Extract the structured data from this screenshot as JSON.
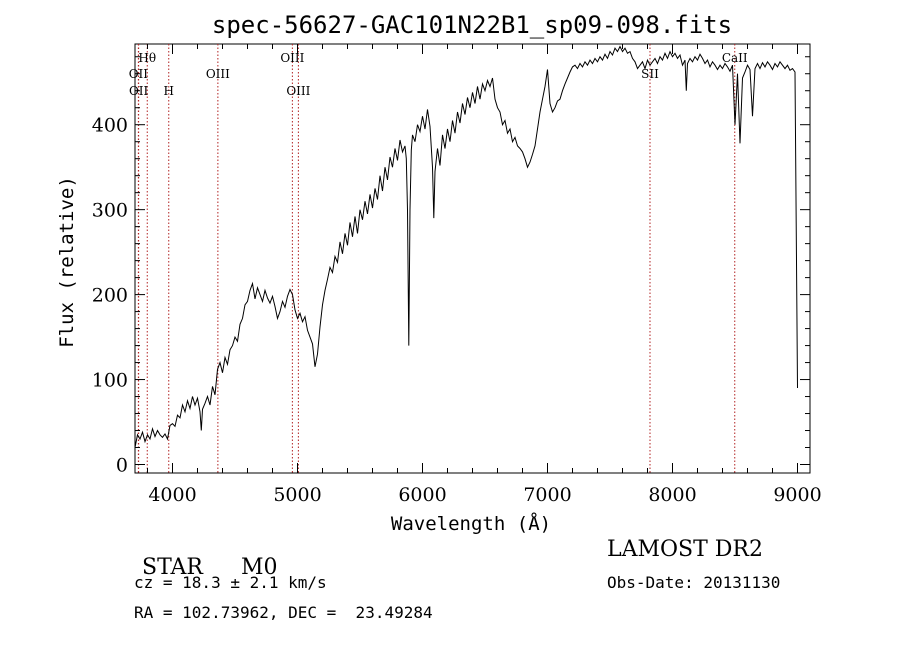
{
  "chart_data": {
    "type": "line",
    "title": "spec-56627-GAC101N22B1_sp09-098.fits",
    "xlabel": "Wavelength (Å)",
    "ylabel": "Flux (relative)",
    "xlim": [
      3700,
      9100
    ],
    "ylim": [
      -10,
      495
    ],
    "xticks": [
      4000,
      5000,
      6000,
      7000,
      8000,
      9000
    ],
    "yticks": [
      0,
      100,
      200,
      300,
      400
    ],
    "grid": false,
    "series": [
      {
        "points": [
          [
            3700,
            20
          ],
          [
            3720,
            35
          ],
          [
            3740,
            30
          ],
          [
            3760,
            38
          ],
          [
            3780,
            27
          ],
          [
            3800,
            35
          ],
          [
            3820,
            30
          ],
          [
            3840,
            42
          ],
          [
            3860,
            33
          ],
          [
            3880,
            40
          ],
          [
            3900,
            35
          ],
          [
            3920,
            32
          ],
          [
            3940,
            36
          ],
          [
            3960,
            30
          ],
          [
            3980,
            46
          ],
          [
            4000,
            48
          ],
          [
            4020,
            45
          ],
          [
            4040,
            58
          ],
          [
            4060,
            55
          ],
          [
            4080,
            70
          ],
          [
            4100,
            62
          ],
          [
            4120,
            75
          ],
          [
            4140,
            66
          ],
          [
            4160,
            80
          ],
          [
            4180,
            70
          ],
          [
            4200,
            78
          ],
          [
            4220,
            62
          ],
          [
            4230,
            40
          ],
          [
            4240,
            65
          ],
          [
            4260,
            72
          ],
          [
            4280,
            80
          ],
          [
            4300,
            70
          ],
          [
            4320,
            92
          ],
          [
            4340,
            82
          ],
          [
            4360,
            112
          ],
          [
            4380,
            120
          ],
          [
            4400,
            108
          ],
          [
            4420,
            126
          ],
          [
            4440,
            118
          ],
          [
            4460,
            135
          ],
          [
            4480,
            140
          ],
          [
            4500,
            150
          ],
          [
            4520,
            145
          ],
          [
            4540,
            165
          ],
          [
            4560,
            172
          ],
          [
            4580,
            188
          ],
          [
            4600,
            192
          ],
          [
            4620,
            205
          ],
          [
            4640,
            213
          ],
          [
            4660,
            195
          ],
          [
            4680,
            208
          ],
          [
            4700,
            200
          ],
          [
            4720,
            192
          ],
          [
            4740,
            205
          ],
          [
            4760,
            196
          ],
          [
            4780,
            190
          ],
          [
            4800,
            198
          ],
          [
            4820,
            186
          ],
          [
            4840,
            172
          ],
          [
            4860,
            180
          ],
          [
            4880,
            192
          ],
          [
            4900,
            185
          ],
          [
            4920,
            198
          ],
          [
            4940,
            206
          ],
          [
            4960,
            200
          ],
          [
            4980,
            182
          ],
          [
            5000,
            172
          ],
          [
            5020,
            178
          ],
          [
            5040,
            168
          ],
          [
            5060,
            174
          ],
          [
            5080,
            158
          ],
          [
            5100,
            150
          ],
          [
            5120,
            142
          ],
          [
            5140,
            115
          ],
          [
            5160,
            130
          ],
          [
            5180,
            162
          ],
          [
            5200,
            188
          ],
          [
            5220,
            205
          ],
          [
            5240,
            218
          ],
          [
            5260,
            232
          ],
          [
            5280,
            226
          ],
          [
            5300,
            245
          ],
          [
            5320,
            238
          ],
          [
            5340,
            262
          ],
          [
            5360,
            248
          ],
          [
            5380,
            272
          ],
          [
            5400,
            258
          ],
          [
            5420,
            285
          ],
          [
            5440,
            268
          ],
          [
            5460,
            292
          ],
          [
            5480,
            272
          ],
          [
            5500,
            300
          ],
          [
            5520,
            288
          ],
          [
            5540,
            310
          ],
          [
            5560,
            295
          ],
          [
            5580,
            318
          ],
          [
            5600,
            302
          ],
          [
            5620,
            325
          ],
          [
            5640,
            312
          ],
          [
            5660,
            340
          ],
          [
            5680,
            322
          ],
          [
            5700,
            350
          ],
          [
            5720,
            335
          ],
          [
            5740,
            362
          ],
          [
            5760,
            350
          ],
          [
            5780,
            372
          ],
          [
            5800,
            358
          ],
          [
            5820,
            382
          ],
          [
            5840,
            368
          ],
          [
            5860,
            375
          ],
          [
            5870,
            360
          ],
          [
            5880,
            300
          ],
          [
            5890,
            140
          ],
          [
            5900,
            300
          ],
          [
            5910,
            370
          ],
          [
            5920,
            388
          ],
          [
            5940,
            380
          ],
          [
            5960,
            400
          ],
          [
            5980,
            392
          ],
          [
            6000,
            410
          ],
          [
            6020,
            395
          ],
          [
            6040,
            418
          ],
          [
            6060,
            398
          ],
          [
            6080,
            350
          ],
          [
            6090,
            290
          ],
          [
            6100,
            345
          ],
          [
            6120,
            372
          ],
          [
            6140,
            352
          ],
          [
            6160,
            388
          ],
          [
            6180,
            372
          ],
          [
            6200,
            395
          ],
          [
            6220,
            380
          ],
          [
            6240,
            405
          ],
          [
            6260,
            390
          ],
          [
            6280,
            415
          ],
          [
            6300,
            402
          ],
          [
            6320,
            425
          ],
          [
            6340,
            412
          ],
          [
            6360,
            432
          ],
          [
            6380,
            420
          ],
          [
            6400,
            438
          ],
          [
            6420,
            425
          ],
          [
            6440,
            445
          ],
          [
            6460,
            430
          ],
          [
            6480,
            448
          ],
          [
            6500,
            440
          ],
          [
            6520,
            452
          ],
          [
            6540,
            445
          ],
          [
            6560,
            455
          ],
          [
            6580,
            430
          ],
          [
            6600,
            420
          ],
          [
            6620,
            415
          ],
          [
            6640,
            400
          ],
          [
            6660,
            405
          ],
          [
            6680,
            390
          ],
          [
            6700,
            395
          ],
          [
            6720,
            380
          ],
          [
            6740,
            385
          ],
          [
            6760,
            375
          ],
          [
            6780,
            372
          ],
          [
            6800,
            368
          ],
          [
            6820,
            360
          ],
          [
            6840,
            350
          ],
          [
            6860,
            356
          ],
          [
            6880,
            365
          ],
          [
            6900,
            375
          ],
          [
            6920,
            395
          ],
          [
            6940,
            415
          ],
          [
            6960,
            430
          ],
          [
            6980,
            445
          ],
          [
            7000,
            465
          ],
          [
            7020,
            425
          ],
          [
            7040,
            415
          ],
          [
            7060,
            420
          ],
          [
            7080,
            428
          ],
          [
            7100,
            430
          ],
          [
            7120,
            440
          ],
          [
            7140,
            448
          ],
          [
            7160,
            455
          ],
          [
            7180,
            462
          ],
          [
            7200,
            468
          ],
          [
            7220,
            470
          ],
          [
            7240,
            466
          ],
          [
            7260,
            472
          ],
          [
            7280,
            468
          ],
          [
            7300,
            474
          ],
          [
            7320,
            470
          ],
          [
            7340,
            476
          ],
          [
            7360,
            472
          ],
          [
            7380,
            478
          ],
          [
            7400,
            474
          ],
          [
            7420,
            480
          ],
          [
            7440,
            476
          ],
          [
            7460,
            483
          ],
          [
            7480,
            478
          ],
          [
            7500,
            486
          ],
          [
            7520,
            482
          ],
          [
            7540,
            490
          ],
          [
            7560,
            486
          ],
          [
            7580,
            492
          ],
          [
            7600,
            486
          ],
          [
            7620,
            490
          ],
          [
            7640,
            484
          ],
          [
            7660,
            486
          ],
          [
            7680,
            478
          ],
          [
            7700,
            474
          ],
          [
            7720,
            466
          ],
          [
            7740,
            470
          ],
          [
            7760,
            474
          ],
          [
            7780,
            466
          ],
          [
            7800,
            476
          ],
          [
            7820,
            470
          ],
          [
            7840,
            474
          ],
          [
            7860,
            478
          ],
          [
            7880,
            472
          ],
          [
            7900,
            480
          ],
          [
            7920,
            476
          ],
          [
            7940,
            484
          ],
          [
            7960,
            478
          ],
          [
            7980,
            486
          ],
          [
            8000,
            480
          ],
          [
            8020,
            484
          ],
          [
            8040,
            478
          ],
          [
            8060,
            482
          ],
          [
            8080,
            470
          ],
          [
            8100,
            476
          ],
          [
            8110,
            440
          ],
          [
            8120,
            472
          ],
          [
            8140,
            478
          ],
          [
            8160,
            474
          ],
          [
            8180,
            480
          ],
          [
            8200,
            476
          ],
          [
            8220,
            483
          ],
          [
            8240,
            478
          ],
          [
            8260,
            472
          ],
          [
            8280,
            476
          ],
          [
            8300,
            468
          ],
          [
            8320,
            474
          ],
          [
            8340,
            470
          ],
          [
            8360,
            465
          ],
          [
            8380,
            470
          ],
          [
            8400,
            466
          ],
          [
            8420,
            472
          ],
          [
            8440,
            468
          ],
          [
            8460,
            463
          ],
          [
            8480,
            470
          ],
          [
            8500,
            400
          ],
          [
            8520,
            460
          ],
          [
            8540,
            378
          ],
          [
            8560,
            455
          ],
          [
            8580,
            462
          ],
          [
            8600,
            470
          ],
          [
            8620,
            465
          ],
          [
            8640,
            410
          ],
          [
            8660,
            466
          ],
          [
            8680,
            472
          ],
          [
            8700,
            466
          ],
          [
            8720,
            473
          ],
          [
            8740,
            468
          ],
          [
            8760,
            474
          ],
          [
            8780,
            470
          ],
          [
            8800,
            465
          ],
          [
            8820,
            472
          ],
          [
            8840,
            468
          ],
          [
            8860,
            474
          ],
          [
            8880,
            470
          ],
          [
            8900,
            466
          ],
          [
            8920,
            470
          ],
          [
            8940,
            464
          ],
          [
            8960,
            466
          ],
          [
            8980,
            462
          ],
          [
            9000,
            90
          ]
        ]
      }
    ],
    "lines": [
      {
        "label": "Hθ",
        "x": 3798,
        "row": 1
      },
      {
        "label": "OII",
        "x": 3727,
        "row": 2
      },
      {
        "label": "OII",
        "x": 3729,
        "row": 3
      },
      {
        "label": "H",
        "x": 3970,
        "row": 3
      },
      {
        "label": "OIII",
        "x": 4363,
        "row": 2
      },
      {
        "label": "OIII",
        "x": 4959,
        "row": 1
      },
      {
        "label": "OIII",
        "x": 5007,
        "row": 3
      },
      {
        "label": "SII",
        "x": 7820,
        "row": 2
      },
      {
        "label": "CaII",
        "x": 8498,
        "row": 1
      }
    ]
  },
  "footer": {
    "class_label": "STAR",
    "subclass": "M0",
    "cz": "cz = 18.3 ± 2.1 km/s",
    "radec": "RA = 102.73962, DEC =  23.49284",
    "survey": "LAMOST DR2",
    "obs_date": "Obs-Date: 20131130"
  }
}
